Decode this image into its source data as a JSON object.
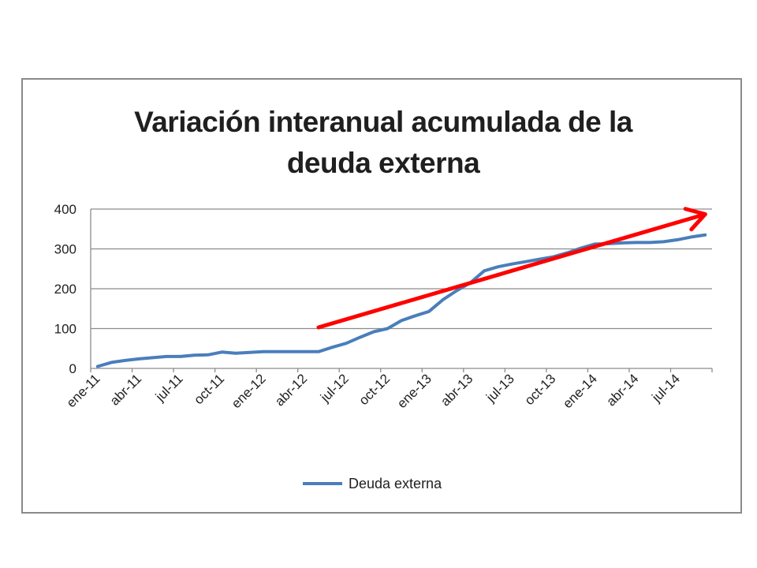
{
  "chart_data": {
    "type": "line",
    "title": [
      "Variación interanual acumulada de la",
      "deuda externa"
    ],
    "xlabel": "",
    "ylabel": "",
    "ylim": [
      0,
      400
    ],
    "yticks": [
      0,
      100,
      200,
      300,
      400
    ],
    "grid": true,
    "legend_position": "bottom",
    "x": [
      "ene-11",
      "feb-11",
      "mar-11",
      "abr-11",
      "may-11",
      "jun-11",
      "jul-11",
      "ago-11",
      "sep-11",
      "oct-11",
      "nov-11",
      "dic-11",
      "ene-12",
      "feb-12",
      "mar-12",
      "abr-12",
      "may-12",
      "jun-12",
      "jul-12",
      "ago-12",
      "sep-12",
      "oct-12",
      "nov-12",
      "dic-12",
      "ene-13",
      "feb-13",
      "mar-13",
      "abr-13",
      "may-13",
      "jun-13",
      "jul-13",
      "ago-13",
      "sep-13",
      "oct-13",
      "nov-13",
      "dic-13",
      "ene-14",
      "feb-14",
      "mar-14",
      "abr-14",
      "may-14",
      "jun-14",
      "jul-14",
      "ago-14",
      "sep-14"
    ],
    "xtick_labels": [
      "ene-11",
      "abr-11",
      "jul-11",
      "oct-11",
      "ene-12",
      "abr-12",
      "jul-12",
      "oct-12",
      "ene-13",
      "abr-13",
      "jul-13",
      "oct-13",
      "ene-14",
      "abr-14",
      "jul-14"
    ],
    "series": [
      {
        "name": "Deuda externa",
        "color": "#4a7ebb",
        "values": [
          5,
          15,
          20,
          24,
          27,
          30,
          30,
          33,
          34,
          41,
          38,
          40,
          42,
          42,
          42,
          42,
          42,
          53,
          63,
          78,
          92,
          100,
          120,
          132,
          143,
          172,
          195,
          215,
          245,
          255,
          262,
          268,
          274,
          280,
          290,
          302,
          312,
          313,
          315,
          316,
          316,
          318,
          323,
          330,
          335
        ]
      }
    ],
    "annotations": [
      {
        "type": "arrow",
        "color": "#ff0000",
        "from": [
          "may-12",
          103
        ],
        "to": [
          "sep-14",
          387
        ]
      }
    ]
  }
}
